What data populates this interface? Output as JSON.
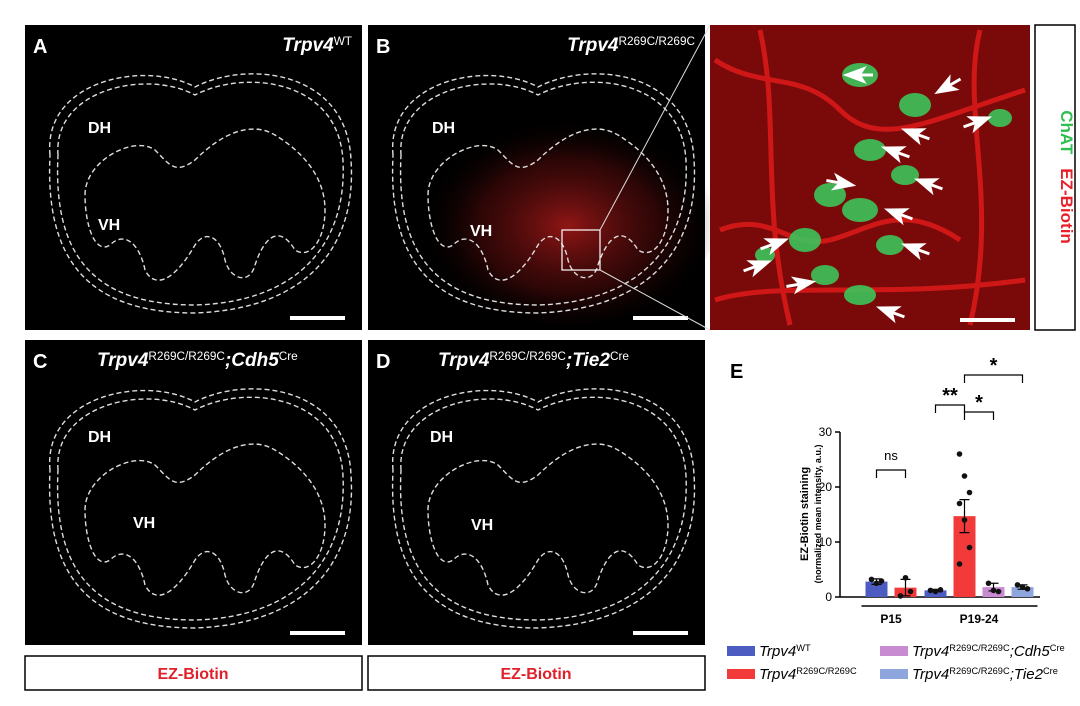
{
  "panels": [
    {
      "label": "A",
      "title": [
        {
          "text": "Trpv4"
        },
        {
          "text": "WT",
          "sup": true
        }
      ],
      "regions": [
        "DH",
        "VH"
      ]
    },
    {
      "label": "B",
      "title": [
        {
          "text": "Trpv4"
        },
        {
          "text": "R269C/R269C",
          "sup": true
        }
      ],
      "regions": [
        "DH",
        "VH"
      ]
    },
    {
      "label": "C",
      "title": [
        {
          "text": "Trpv4"
        },
        {
          "text": "R269C/R269C",
          "sup": true
        },
        {
          "text": ";"
        },
        {
          "text": "Cdh5"
        },
        {
          "text": "Cre",
          "sup": true
        }
      ],
      "regions": [
        "DH",
        "VH"
      ]
    },
    {
      "label": "D",
      "title": [
        {
          "text": "Trpv4"
        },
        {
          "text": "R269C/R269C",
          "sup": true
        },
        {
          "text": ";"
        },
        {
          "text": "Tie2"
        },
        {
          "text": "Cre",
          "sup": true
        }
      ],
      "regions": [
        "DH",
        "VH"
      ]
    }
  ],
  "inset": {
    "channels": [
      "ChAT",
      "EZ-Biotin"
    ]
  },
  "stain_labels": [
    "EZ-Biotin",
    "EZ-Biotin"
  ],
  "chart_data": {
    "type": "bar",
    "label": "E",
    "ylabel": "EZ-Biotin staining",
    "ylabel_sub": "(normalized mean intensity, a.u.)",
    "categories": [
      "P15",
      "P19-24"
    ],
    "ylim": [
      0,
      30
    ],
    "yticks": [
      0,
      10,
      20,
      30
    ],
    "series": [
      {
        "name": [
          {
            "text": "Trpv4"
          },
          {
            "text": "WT",
            "sup": true
          }
        ],
        "color": "#4d5cc0",
        "values": [
          2.8,
          1.2
        ],
        "errors": [
          0.5,
          0.2
        ],
        "points": [
          [
            3.2,
            2.5,
            2.9
          ],
          [
            1.2,
            1.0,
            1.3
          ]
        ]
      },
      {
        "name": [
          {
            "text": "Trpv4"
          },
          {
            "text": "R269C/R269C",
            "sup": true
          }
        ],
        "color": "#f23a3a",
        "values": [
          1.7,
          14.7
        ],
        "errors": [
          1.5,
          3.0
        ],
        "points": [
          [
            0.2,
            3.5,
            1.0
          ],
          [
            26,
            22,
            19,
            17,
            14,
            9,
            6
          ]
        ]
      },
      {
        "name": [
          {
            "text": "Trpv4"
          },
          {
            "text": "R269C/R269C",
            "sup": true
          },
          {
            "text": ";"
          },
          {
            "text": "Cdh5"
          },
          {
            "text": "Cre",
            "sup": true
          }
        ],
        "color": "#c88bd2",
        "values": [
          null,
          1.8
        ],
        "errors": [
          null,
          0.7
        ],
        "points": [
          null,
          [
            2.5,
            1.2,
            1.0
          ]
        ]
      },
      {
        "name": [
          {
            "text": "Trpv4"
          },
          {
            "text": "R269C/R269C",
            "sup": true
          },
          {
            "text": ";"
          },
          {
            "text": "Tie2"
          },
          {
            "text": "Cre",
            "sup": true
          }
        ],
        "color": "#8fa5dd",
        "values": [
          null,
          1.8
        ],
        "errors": [
          null,
          0.4
        ],
        "points": [
          null,
          [
            2.2,
            1.8,
            1.5
          ]
        ]
      }
    ],
    "annotations": [
      "ns",
      "**",
      "*",
      "*"
    ]
  }
}
